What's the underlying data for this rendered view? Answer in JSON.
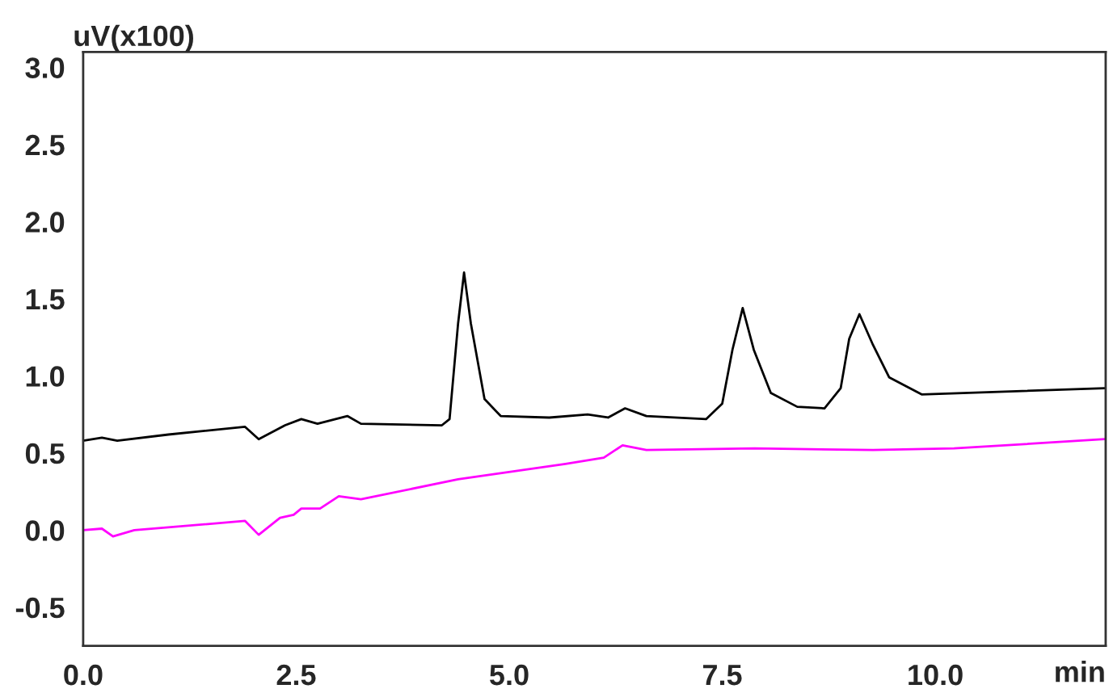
{
  "chart_data": {
    "type": "line",
    "xlabel": "min",
    "ylabel": "uV(x100)",
    "xlim": [
      0,
      12.0
    ],
    "ylim": [
      -0.75,
      3.1
    ],
    "xticks": [
      {
        "value": 0,
        "label": "0.0"
      },
      2.5,
      {
        "value": 5,
        "label": "5.0"
      },
      7.5,
      {
        "value": 10,
        "label": "10.0"
      }
    ],
    "yticks": [
      {
        "value": -0.5,
        "label": "-0.5"
      },
      {
        "value": 0,
        "label": "0.0"
      },
      0.5,
      {
        "value": 1,
        "label": "1.0"
      },
      1.5,
      {
        "value": 2,
        "label": "2.0"
      },
      2.5,
      {
        "value": 3,
        "label": "3.0"
      }
    ],
    "grid": false,
    "legend": false,
    "marker": "none",
    "line_style": "solid",
    "series": [
      {
        "color": "#000000",
        "x": [
          0,
          0.22,
          0.4,
          1.0,
          1.9,
          2.06,
          2.37,
          2.56,
          2.75,
          3.1,
          3.26,
          4.21,
          4.3,
          4.4,
          4.47,
          4.55,
          4.71,
          4.9,
          5.47,
          5.92,
          6.16,
          6.36,
          6.61,
          7.31,
          7.5,
          7.62,
          7.74,
          7.87,
          8.07,
          8.38,
          8.7,
          8.89,
          8.99,
          9.11,
          9.27,
          9.46,
          9.84,
          11.99
        ],
        "values": [
          0.58,
          0.6,
          0.58,
          0.62,
          0.67,
          0.59,
          0.68,
          0.72,
          0.69,
          0.74,
          0.69,
          0.68,
          0.72,
          1.34,
          1.67,
          1.34,
          0.85,
          0.74,
          0.73,
          0.75,
          0.73,
          0.79,
          0.74,
          0.72,
          0.82,
          1.17,
          1.44,
          1.17,
          0.89,
          0.8,
          0.79,
          0.92,
          1.24,
          1.4,
          1.2,
          0.99,
          0.88,
          0.92
        ]
      },
      {
        "color": "#ff00ff",
        "x": [
          0,
          0.22,
          0.35,
          0.6,
          1.9,
          2.06,
          2.31,
          2.47,
          2.56,
          2.78,
          3.0,
          3.26,
          4.4,
          5.66,
          6.11,
          6.33,
          6.61,
          7.88,
          9.27,
          10.22,
          11.99
        ],
        "values": [
          0.0,
          0.01,
          -0.04,
          0.0,
          0.06,
          -0.03,
          0.08,
          0.1,
          0.14,
          0.14,
          0.22,
          0.2,
          0.33,
          0.43,
          0.47,
          0.55,
          0.52,
          0.53,
          0.52,
          0.53,
          0.59
        ]
      }
    ]
  }
}
